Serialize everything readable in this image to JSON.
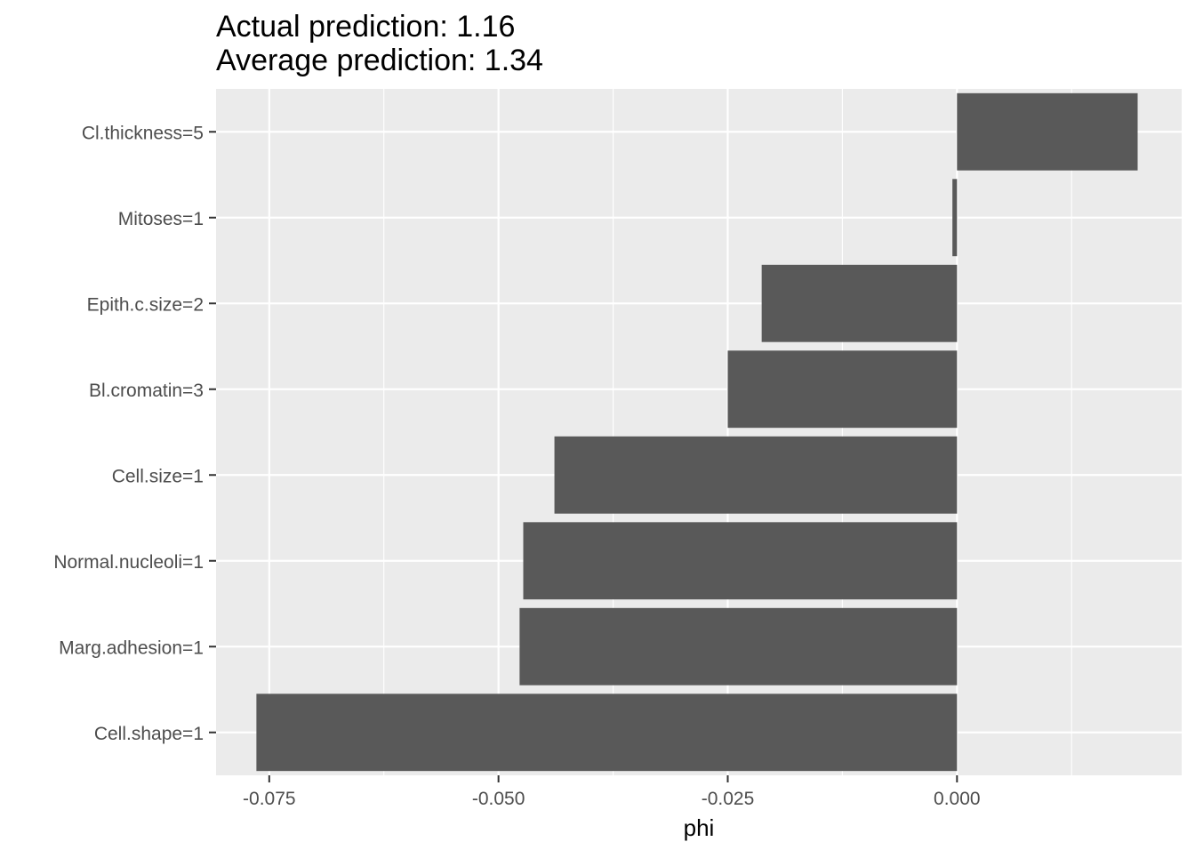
{
  "chart_data": {
    "type": "bar",
    "orientation": "horizontal",
    "title": "Actual prediction: 1.16",
    "subtitle": "Average prediction: 1.34",
    "xlabel": "phi",
    "ylabel": "",
    "categories": [
      "Cl.thickness=5",
      "Mitoses=1",
      "Epith.c.size=2",
      "Bl.cromatin=3",
      "Cell.size=1",
      "Normal.nucleoli=1",
      "Marg.adhesion=1",
      "Cell.shape=1"
    ],
    "values": [
      0.0197,
      -0.0005,
      -0.0213,
      -0.025,
      -0.0439,
      -0.0473,
      -0.0477,
      -0.0764
    ],
    "xlim": [
      -0.0808,
      0.0245
    ],
    "x_ticks": [
      -0.075,
      -0.05,
      -0.025,
      0.0
    ],
    "x_tick_labels": [
      "-0.075",
      "-0.050",
      "-0.025",
      "0.000"
    ],
    "grid": true,
    "legend": "none",
    "colors": {
      "bar": "#595959",
      "panel": "#ebebeb",
      "grid": "#ffffff",
      "text": "#4d4d4d",
      "title": "#000000"
    }
  }
}
